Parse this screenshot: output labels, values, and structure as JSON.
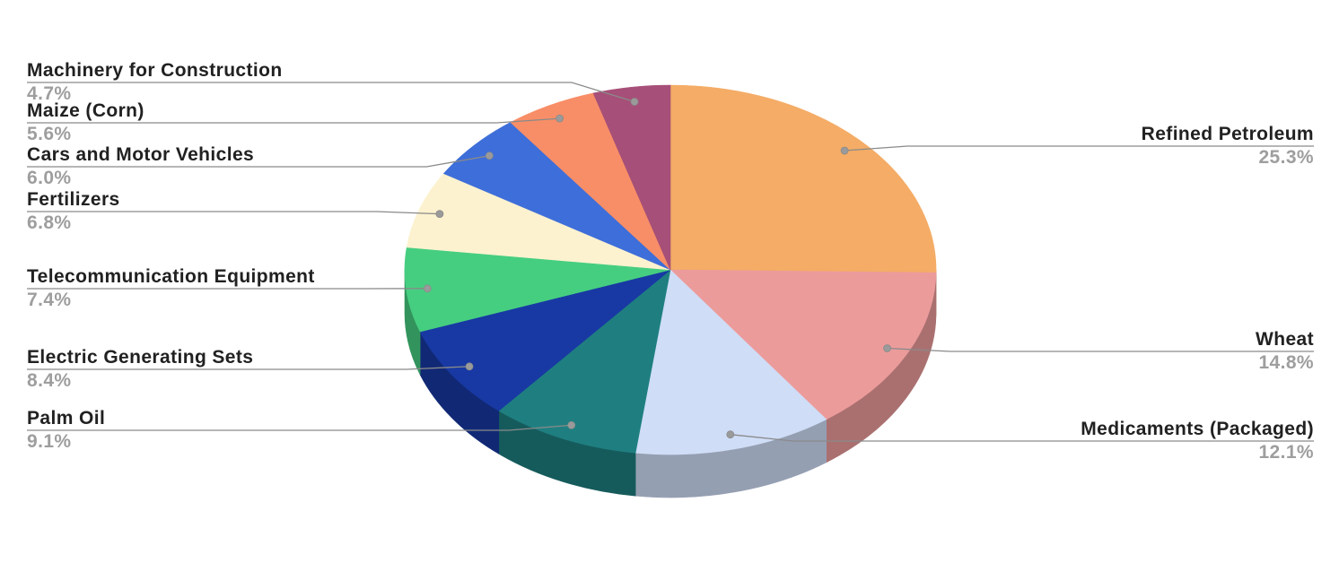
{
  "chart_data": {
    "type": "pie",
    "style_3d": true,
    "title": "",
    "legend_position": "callout-labels",
    "start_angle_deg": -90,
    "direction": "clockwise",
    "slices": [
      {
        "slug": "refined-petroleum",
        "label": "Refined Petroleum",
        "value": 25.3,
        "pct_label": "25.3%",
        "color": "#F4AC66"
      },
      {
        "slug": "wheat",
        "label": "Wheat",
        "value": 14.8,
        "pct_label": "14.8%",
        "color": "#EC9B9B"
      },
      {
        "slug": "medicaments-packaged",
        "label": "Medicaments (Packaged)",
        "value": 12.1,
        "pct_label": "12.1%",
        "color": "#CFDDF7"
      },
      {
        "slug": "palm-oil",
        "label": "Palm Oil",
        "value": 9.1,
        "pct_label": "9.1%",
        "color": "#1F7F80"
      },
      {
        "slug": "electric-generating-sets",
        "label": "Electric Generating Sets",
        "value": 8.4,
        "pct_label": "8.4%",
        "color": "#1839A3"
      },
      {
        "slug": "telecommunication-equipment",
        "label": "Telecommunication Equipment",
        "value": 7.4,
        "pct_label": "7.4%",
        "color": "#46CE80"
      },
      {
        "slug": "fertilizers",
        "label": "Fertilizers",
        "value": 6.8,
        "pct_label": "6.8%",
        "color": "#FCF2CF"
      },
      {
        "slug": "cars-and-motor-vehicles",
        "label": "Cars and Motor Vehicles",
        "value": 6.0,
        "pct_label": "6.0%",
        "color": "#3E6ED9"
      },
      {
        "slug": "maize-corn",
        "label": "Maize (Corn)",
        "value": 5.6,
        "pct_label": "5.6%",
        "color": "#F88E67"
      },
      {
        "slug": "machinery-for-construction",
        "label": "Machinery for Construction",
        "value": 4.7,
        "pct_label": "4.7%",
        "color": "#A64F78"
      }
    ]
  },
  "styles": {
    "background": "#FFFFFF",
    "label_color": "#212121",
    "pct_color": "#9E9E9E",
    "leader_line_color": "#8a8a8a",
    "dot_color": "#9a9a9a"
  }
}
